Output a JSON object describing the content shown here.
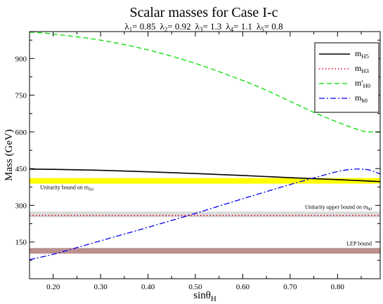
{
  "chart_data": {
    "type": "line",
    "title": "Scalar masses for Case I-c",
    "subtitle": "λ1 = 0.85  λ2 = 0.92  λ3 = 1.3  λ4 = 1.1  λ5 = 0.8",
    "lambdas": [
      {
        "sym": "λ",
        "sub": "1",
        "val": "= 0.85"
      },
      {
        "sym": "λ",
        "sub": "2",
        "val": "= 0.92"
      },
      {
        "sym": "λ",
        "sub": "3",
        "val": "= 1.3"
      },
      {
        "sym": "λ",
        "sub": "4",
        "val": "= 1.1"
      },
      {
        "sym": "λ",
        "sub": "5",
        "val": "= 0.8"
      }
    ],
    "xlabel": {
      "main": "sinθ",
      "sub": "H"
    },
    "ylabel": "Mass (GeV)",
    "xlim": [
      0.15,
      0.89
    ],
    "ylim": [
      0,
      1010
    ],
    "xticks": [
      0.2,
      0.3,
      0.4,
      0.5,
      0.6,
      0.7,
      0.8
    ],
    "xtick_labels": [
      "0.20",
      "0.30",
      "0.40",
      "0.50",
      "0.60",
      "0.70",
      "0.80"
    ],
    "yticks": [
      150,
      300,
      450,
      600,
      750,
      900
    ],
    "ytick_labels": [
      "150",
      "300",
      "450",
      "600",
      "750",
      "900"
    ],
    "legend_position": "top-right",
    "series": [
      {
        "name": "m_H5",
        "label_main": "m",
        "label_sub": "H5",
        "color": "#000000",
        "dash": "",
        "width": 1.6,
        "x": [
          0.15,
          0.2,
          0.3,
          0.4,
          0.5,
          0.6,
          0.7,
          0.8,
          0.89
        ],
        "y": [
          448,
          447,
          443,
          437,
          430,
          422,
          413,
          405,
          397
        ]
      },
      {
        "name": "m_H3",
        "label_main": "m",
        "label_sub": "H3",
        "color": "#e0001a",
        "dash": "1.5,3",
        "width": 1.6,
        "x": [
          0.15,
          0.89
        ],
        "y": [
          258,
          258
        ]
      },
      {
        "name": "m'_H0",
        "label_main": "m'",
        "label_sub": "H0",
        "color": "#00dd00",
        "dash": "7,4",
        "width": 1.3,
        "x": [
          0.15,
          0.2,
          0.3,
          0.4,
          0.5,
          0.6,
          0.65,
          0.7,
          0.75,
          0.8,
          0.85,
          0.87,
          0.89
        ],
        "y": [
          1008,
          1000,
          975,
          935,
          880,
          810,
          770,
          725,
          680,
          640,
          605,
          600,
          598
        ]
      },
      {
        "name": "m_h0",
        "label_main": "m",
        "label_sub": "h0",
        "color": "#0000ee",
        "dash": "8,3,2,3",
        "width": 1.3,
        "x": [
          0.15,
          0.2,
          0.3,
          0.4,
          0.5,
          0.6,
          0.7,
          0.75,
          0.8,
          0.83,
          0.85,
          0.87,
          0.89
        ],
        "y": [
          78,
          100,
          155,
          210,
          267,
          327,
          385,
          412,
          438,
          447,
          448,
          443,
          428
        ]
      }
    ],
    "bands": [
      {
        "name": "unitarity-bound-mh3",
        "label_main": "Unitarity bound on m",
        "label_sub": "H3",
        "y": 400,
        "thickness": 15,
        "color": "#ffff00",
        "label_anchor": "left"
      },
      {
        "name": "unitarity-upper-bound-mh0",
        "label_main": "Unitarity upper bound on m",
        "label_sub": "h0",
        "y": 263,
        "thickness": 15,
        "color": "#d9d9d9",
        "label_anchor": "right"
      },
      {
        "name": "lep-bound",
        "label_main": "LEP bound",
        "label_sub": "",
        "y": 114,
        "thickness": 15,
        "color": "#bc8f8f",
        "label_anchor": "right"
      }
    ]
  }
}
